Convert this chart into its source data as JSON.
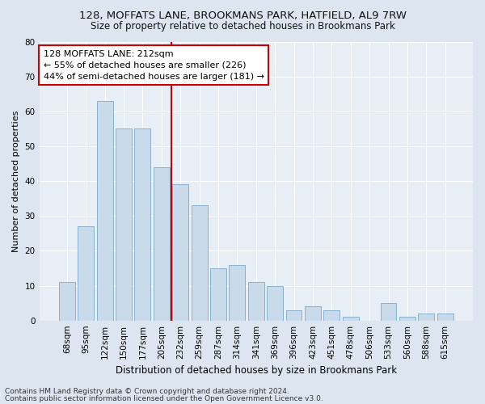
{
  "title1": "128, MOFFATS LANE, BROOKMANS PARK, HATFIELD, AL9 7RW",
  "title2": "Size of property relative to detached houses in Brookmans Park",
  "xlabel": "Distribution of detached houses by size in Brookmans Park",
  "ylabel": "Number of detached properties",
  "categories": [
    "68sqm",
    "95sqm",
    "122sqm",
    "150sqm",
    "177sqm",
    "205sqm",
    "232sqm",
    "259sqm",
    "287sqm",
    "314sqm",
    "341sqm",
    "369sqm",
    "396sqm",
    "423sqm",
    "451sqm",
    "478sqm",
    "506sqm",
    "533sqm",
    "560sqm",
    "588sqm",
    "615sqm"
  ],
  "values": [
    11,
    27,
    63,
    55,
    55,
    44,
    39,
    33,
    15,
    16,
    11,
    10,
    3,
    4,
    3,
    1,
    0,
    5,
    1,
    2,
    2
  ],
  "bar_color": "#c9daea",
  "bar_edge_color": "#7aaac8",
  "marker_line_color": "#cc0000",
  "annotation_text": "128 MOFFATS LANE: 212sqm\n← 55% of detached houses are smaller (226)\n44% of semi-detached houses are larger (181) →",
  "annotation_box_facecolor": "#ffffff",
  "annotation_box_edgecolor": "#cc0000",
  "ylim": [
    0,
    80
  ],
  "yticks": [
    0,
    10,
    20,
    30,
    40,
    50,
    60,
    70,
    80
  ],
  "footer1": "Contains HM Land Registry data © Crown copyright and database right 2024.",
  "footer2": "Contains public sector information licensed under the Open Government Licence v3.0.",
  "bg_color": "#dde6f0",
  "plot_bg_color": "#e8eef5",
  "grid_color": "#ffffff",
  "title1_fontsize": 9.5,
  "title2_fontsize": 8.5,
  "ylabel_fontsize": 8,
  "xlabel_fontsize": 8.5,
  "tick_fontsize": 7.5,
  "annotation_fontsize": 8,
  "footer_fontsize": 6.5
}
